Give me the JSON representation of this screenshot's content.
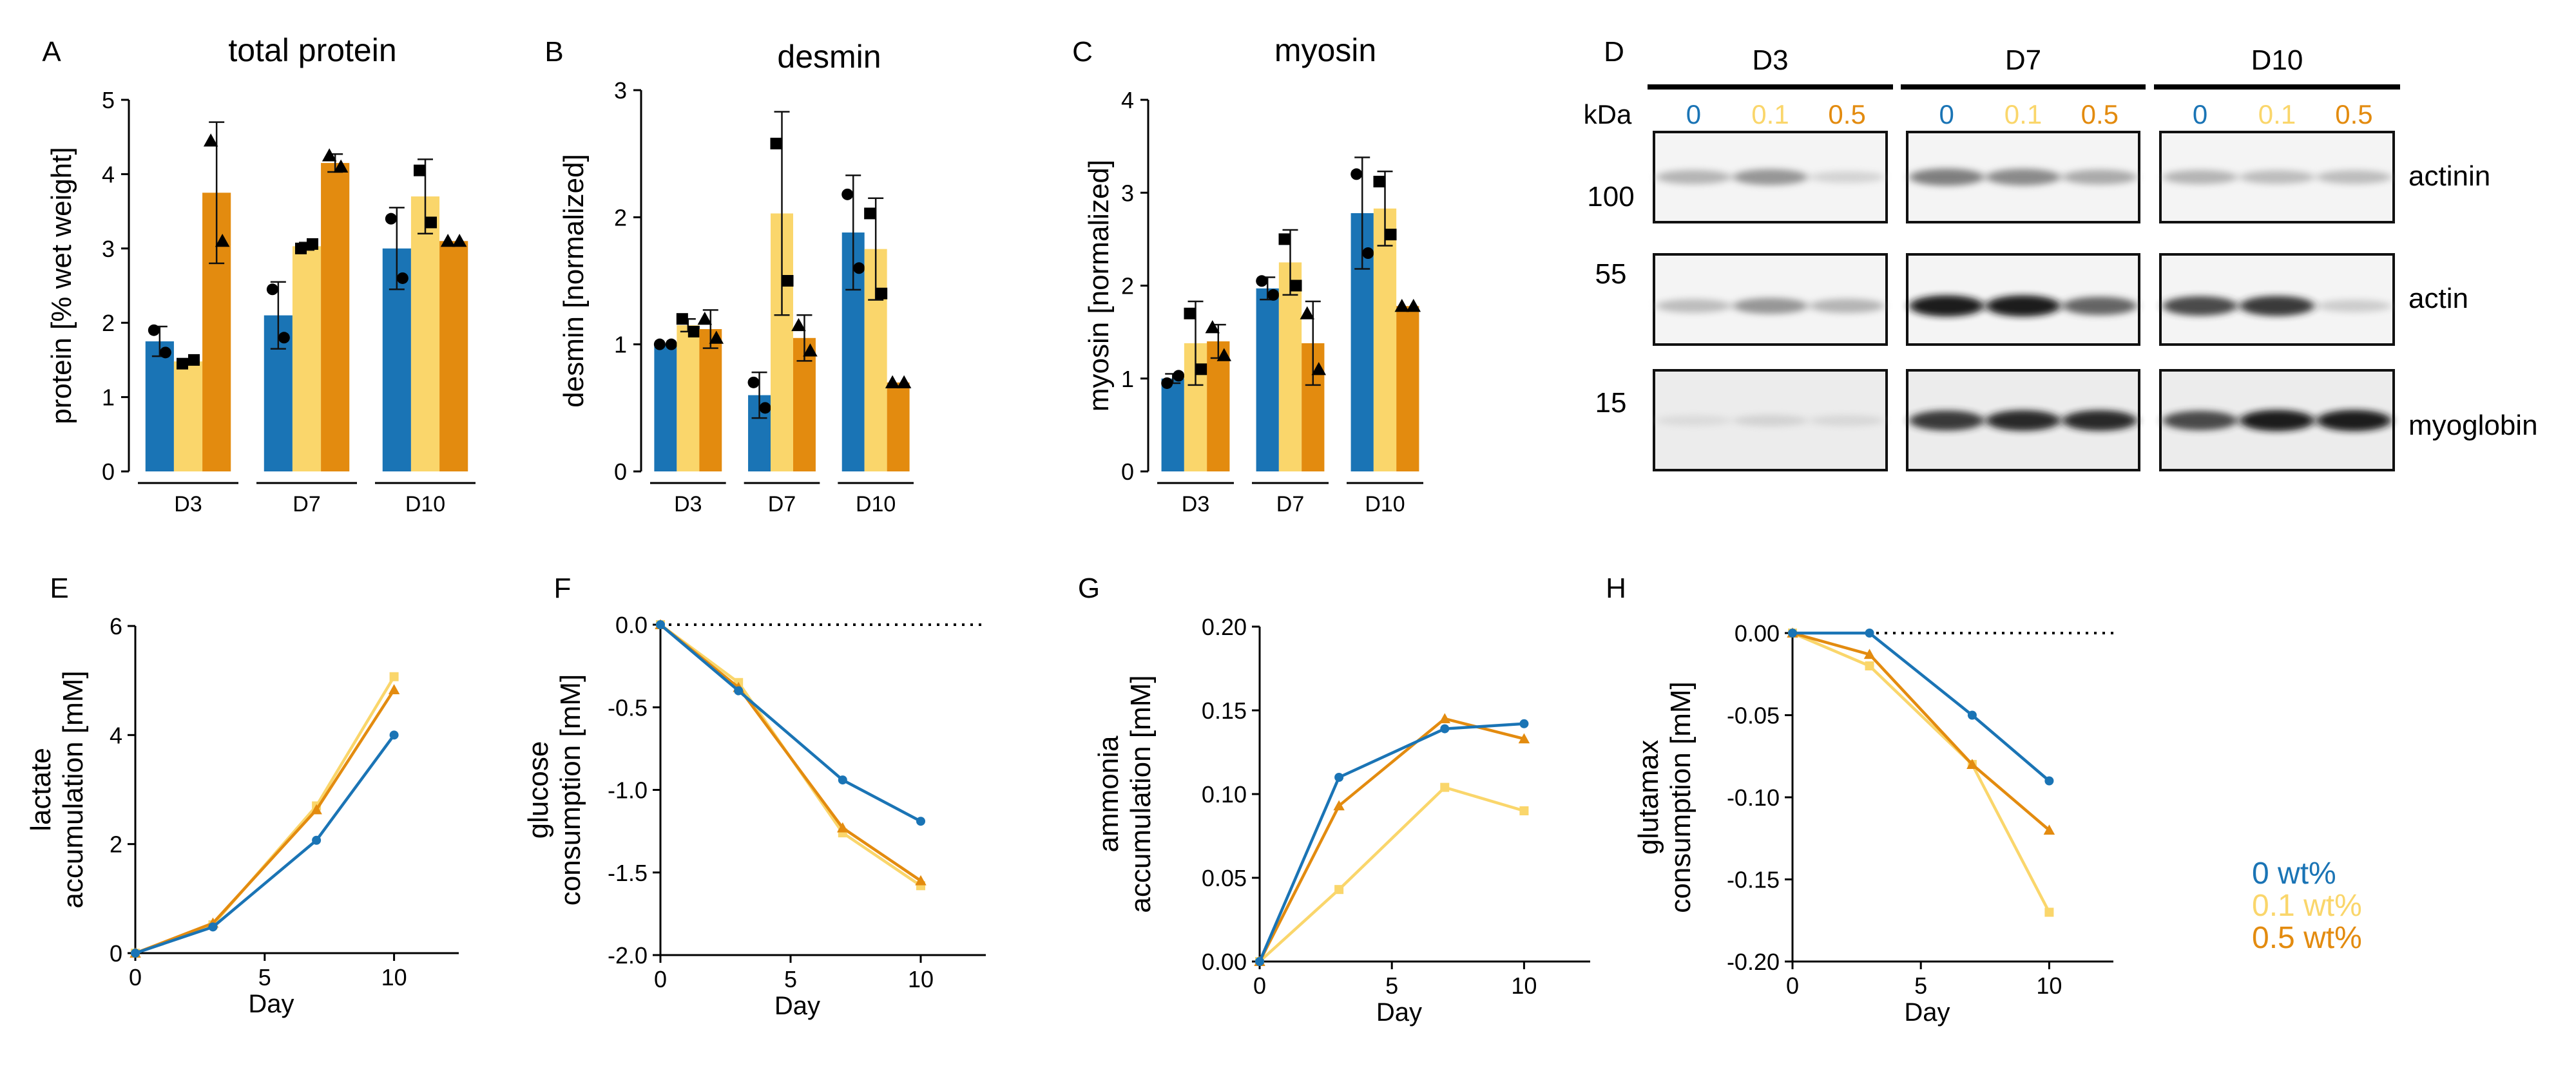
{
  "colors": {
    "c0": "#1a74b5",
    "c01": "#fad66b",
    "c05": "#e38b0f"
  },
  "legend": {
    "items": [
      {
        "label": "0 wt%",
        "color": "#1a74b5"
      },
      {
        "label": "0.1 wt%",
        "color": "#fad66b"
      },
      {
        "label": "0.5 wt%",
        "color": "#e38b0f"
      }
    ]
  },
  "westernBlot": {
    "panelLetter": "D",
    "groups": [
      "D3",
      "D7",
      "D10"
    ],
    "unitLabel": "kDa",
    "lanes": [
      {
        "label": "0",
        "color": "#1a74b5"
      },
      {
        "label": "0.1",
        "color": "#fad66b"
      },
      {
        "label": "0.5",
        "color": "#e38b0f"
      }
    ],
    "rows": [
      {
        "marker": "100",
        "protein": "actinin",
        "intensity": [
          [
            0.35,
            0.5,
            0.15
          ],
          [
            0.6,
            0.55,
            0.4
          ],
          [
            0.35,
            0.3,
            0.3
          ]
        ]
      },
      {
        "marker": "55",
        "protein": "actin",
        "intensity": [
          [
            0.3,
            0.5,
            0.35
          ],
          [
            0.95,
            0.95,
            0.7
          ],
          [
            0.8,
            0.85,
            0.2
          ]
        ]
      },
      {
        "marker": "15",
        "protein": "myoglobin",
        "intensity": [
          [
            0.05,
            0.12,
            0.08
          ],
          [
            0.85,
            0.9,
            0.9
          ],
          [
            0.8,
            0.95,
            0.95
          ]
        ]
      }
    ]
  },
  "chart_data": [
    {
      "id": "A",
      "type": "bar",
      "letter": "A",
      "title": "total protein",
      "ylabel": "protein [% wet weight]",
      "xlabel": "",
      "ylim": [
        0,
        5
      ],
      "yticks": [
        0,
        1,
        2,
        3,
        4,
        5
      ],
      "categories": [
        "D3",
        "D7",
        "D10"
      ],
      "series": [
        {
          "name": "0 wt%",
          "values": [
            1.75,
            2.1,
            3.0
          ],
          "err": [
            0.2,
            0.45,
            0.55
          ],
          "points": [
            [
              1.9,
              1.6
            ],
            [
              2.45,
              1.8
            ],
            [
              3.4,
              2.6
            ]
          ],
          "marker": "circle"
        },
        {
          "name": "0.1 wt%",
          "values": [
            1.48,
            3.03,
            3.7
          ],
          "err": [
            0.03,
            0.05,
            0.5
          ],
          "points": [
            [
              1.45,
              1.5
            ],
            [
              3.0,
              3.06
            ],
            [
              4.05,
              3.35
            ]
          ],
          "marker": "square"
        },
        {
          "name": "0.5 wt%",
          "values": [
            3.75,
            4.15,
            3.1
          ],
          "err": [
            0.95,
            0.12,
            0.0
          ],
          "points": [
            [
              4.45,
              3.1
            ],
            [
              4.25,
              4.1
            ],
            [
              3.1,
              3.1
            ]
          ],
          "marker": "triangle"
        }
      ]
    },
    {
      "id": "B",
      "type": "bar",
      "letter": "B",
      "title": "desmin",
      "ylabel": "desmin [normalized]",
      "xlabel": "",
      "ylim": [
        0,
        3
      ],
      "yticks": [
        0,
        1,
        2,
        3
      ],
      "categories": [
        "D3",
        "D7",
        "D10"
      ],
      "series": [
        {
          "name": "0 wt%",
          "values": [
            1.0,
            0.6,
            1.88
          ],
          "err": [
            0.0,
            0.18,
            0.45
          ],
          "points": [
            [
              1.0,
              1.0
            ],
            [
              0.7,
              0.5
            ],
            [
              2.18,
              1.6
            ]
          ],
          "marker": "circle"
        },
        {
          "name": "0.1 wt%",
          "values": [
            1.15,
            2.03,
            1.75
          ],
          "err": [
            0.05,
            0.8,
            0.4
          ],
          "points": [
            [
              1.2,
              1.1
            ],
            [
              2.58,
              1.5
            ],
            [
              2.03,
              1.4
            ]
          ],
          "marker": "square"
        },
        {
          "name": "0.5 wt%",
          "values": [
            1.12,
            1.05,
            0.7
          ],
          "err": [
            0.15,
            0.18,
            0.0
          ],
          "points": [
            [
              1.2,
              1.05
            ],
            [
              1.15,
              0.95
            ],
            [
              0.7,
              0.7
            ]
          ],
          "marker": "triangle"
        }
      ]
    },
    {
      "id": "C",
      "type": "bar",
      "letter": "C",
      "title": "myosin",
      "ylabel": "myosin [normalized]",
      "xlabel": "",
      "ylim": [
        0,
        4
      ],
      "yticks": [
        0,
        1,
        2,
        3,
        4
      ],
      "categories": [
        "D3",
        "D7",
        "D10"
      ],
      "series": [
        {
          "name": "0 wt%",
          "values": [
            1.0,
            1.97,
            2.78
          ],
          "err": [
            0.05,
            0.12,
            0.6
          ],
          "points": [
            [
              0.95,
              1.03
            ],
            [
              2.05,
              1.9
            ],
            [
              3.2,
              2.35
            ]
          ],
          "marker": "circle"
        },
        {
          "name": "0.1 wt%",
          "values": [
            1.38,
            2.25,
            2.83
          ],
          "err": [
            0.45,
            0.35,
            0.4
          ],
          "points": [
            [
              1.7,
              1.1
            ],
            [
              2.5,
              2.0
            ],
            [
              3.12,
              2.55
            ]
          ],
          "marker": "square"
        },
        {
          "name": "0.5 wt%",
          "values": [
            1.4,
            1.38,
            1.78
          ],
          "err": [
            0.18,
            0.45,
            0.0
          ],
          "points": [
            [
              1.55,
              1.25
            ],
            [
              1.7,
              1.1
            ],
            [
              1.78,
              1.78
            ]
          ],
          "marker": "triangle"
        }
      ]
    },
    {
      "id": "E",
      "type": "line",
      "letter": "E",
      "title": "",
      "ylabel": "lactate|accumulation [mM]",
      "xlabel": "Day",
      "xlim": [
        0,
        12.5
      ],
      "ylim": [
        0,
        6
      ],
      "xticks": [
        0,
        5,
        10
      ],
      "yticks": [
        0,
        2,
        4,
        6
      ],
      "zeroLine": false,
      "x": [
        0,
        3,
        7,
        10
      ],
      "series": [
        {
          "name": "0 wt%",
          "values": [
            0,
            0.48,
            2.07,
            4.0
          ],
          "marker": "circle"
        },
        {
          "name": "0.1 wt%",
          "values": [
            0,
            0.52,
            2.7,
            5.07
          ],
          "marker": "square"
        },
        {
          "name": "0.5 wt%",
          "values": [
            0,
            0.55,
            2.63,
            4.83
          ],
          "marker": "triangle"
        }
      ]
    },
    {
      "id": "F",
      "type": "line",
      "letter": "F",
      "title": "",
      "ylabel": "glucose|consumption [mM]",
      "xlabel": "Day",
      "xlim": [
        0,
        12.5
      ],
      "ylim": [
        -2.0,
        0.0
      ],
      "xticks": [
        0,
        5,
        10
      ],
      "yticks": [
        -2.0,
        -1.5,
        -1.0,
        -0.5,
        0.0
      ],
      "tickDecimals": 1,
      "zeroLine": true,
      "x": [
        0,
        3,
        7,
        10
      ],
      "series": [
        {
          "name": "0 wt%",
          "values": [
            0,
            -0.4,
            -0.94,
            -1.19
          ],
          "marker": "circle"
        },
        {
          "name": "0.1 wt%",
          "values": [
            0,
            -0.35,
            -1.26,
            -1.58
          ],
          "marker": "square"
        },
        {
          "name": "0.5 wt%",
          "values": [
            0,
            -0.38,
            -1.23,
            -1.55
          ],
          "marker": "triangle"
        }
      ]
    },
    {
      "id": "G",
      "type": "line",
      "letter": "G",
      "title": "",
      "ylabel": "ammonia|accumulation [mM]",
      "xlabel": "Day",
      "xlim": [
        0,
        12.5
      ],
      "ylim": [
        0,
        0.2
      ],
      "xticks": [
        0,
        5,
        10
      ],
      "yticks": [
        0,
        0.05,
        0.1,
        0.15,
        0.2
      ],
      "tickDecimals": 2,
      "zeroLine": false,
      "x": [
        0,
        3,
        7,
        10
      ],
      "series": [
        {
          "name": "0 wt%",
          "values": [
            0,
            0.11,
            0.139,
            0.142
          ],
          "marker": "circle"
        },
        {
          "name": "0.1 wt%",
          "values": [
            0,
            0.043,
            0.104,
            0.09
          ],
          "marker": "square"
        },
        {
          "name": "0.5 wt%",
          "values": [
            0,
            0.093,
            0.145,
            0.133
          ],
          "marker": "triangle"
        }
      ]
    },
    {
      "id": "H",
      "type": "line",
      "letter": "H",
      "title": "",
      "ylabel": "glutamax|consumption [mM]",
      "xlabel": "Day",
      "xlim": [
        0,
        12.5
      ],
      "ylim": [
        -0.2,
        0.0
      ],
      "xticks": [
        0,
        5,
        10
      ],
      "yticks": [
        -0.2,
        -0.15,
        -0.1,
        -0.05,
        0.0
      ],
      "tickDecimals": 2,
      "zeroLine": true,
      "x": [
        0,
        3,
        7,
        10
      ],
      "series": [
        {
          "name": "0 wt%",
          "values": [
            0,
            0,
            -0.05,
            -0.09
          ],
          "marker": "circle"
        },
        {
          "name": "0.1 wt%",
          "values": [
            0,
            -0.02,
            -0.08,
            -0.17
          ],
          "marker": "square"
        },
        {
          "name": "0.5 wt%",
          "values": [
            0,
            -0.013,
            -0.08,
            -0.12
          ],
          "marker": "triangle"
        }
      ]
    }
  ]
}
